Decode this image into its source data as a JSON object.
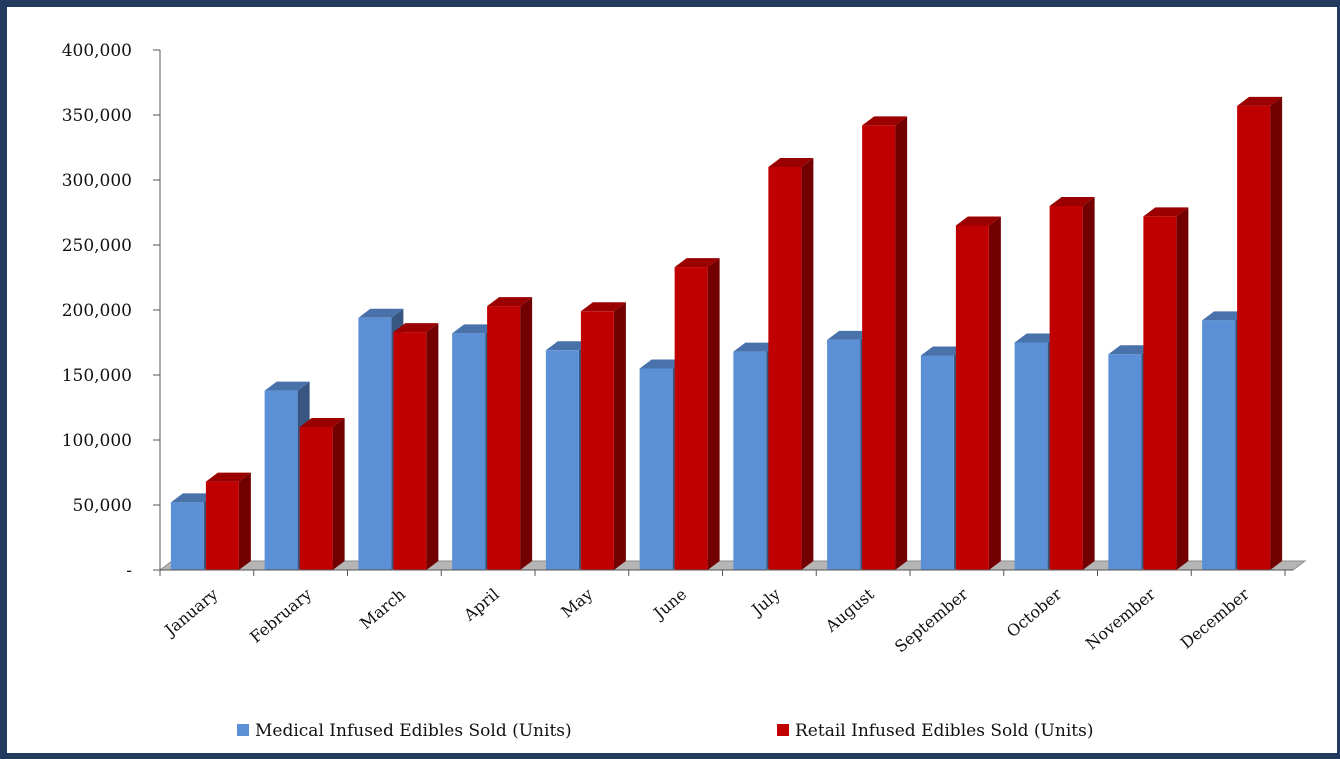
{
  "chart_data": {
    "type": "bar",
    "title": "",
    "xlabel": "",
    "ylabel": "",
    "ylim": [
      0,
      400000
    ],
    "yticks": [
      0,
      50000,
      100000,
      150000,
      200000,
      250000,
      300000,
      350000,
      400000
    ],
    "ytick_labels": [
      "-",
      "50,000",
      "100,000",
      "150,000",
      "200,000",
      "250,000",
      "300,000",
      "350,000",
      "400,000"
    ],
    "categories": [
      "January",
      "February",
      "March",
      "April",
      "May",
      "June",
      "July",
      "August",
      "September",
      "October",
      "November",
      "December"
    ],
    "series": [
      {
        "name": "Medical Infused Edibles Sold (Units)",
        "color": "#5b8fd6",
        "values": [
          52000,
          138000,
          194000,
          182000,
          169000,
          155000,
          168000,
          177000,
          165000,
          175000,
          166000,
          192000
        ]
      },
      {
        "name": "Retail Infused Edibles Sold (Units)",
        "color": "#c00000",
        "values": [
          68000,
          110000,
          183000,
          203000,
          199000,
          233000,
          310000,
          342000,
          265000,
          280000,
          272000,
          357000
        ]
      }
    ],
    "grid": false,
    "legend_position": "bottom",
    "style": "3d-clustered-column"
  }
}
